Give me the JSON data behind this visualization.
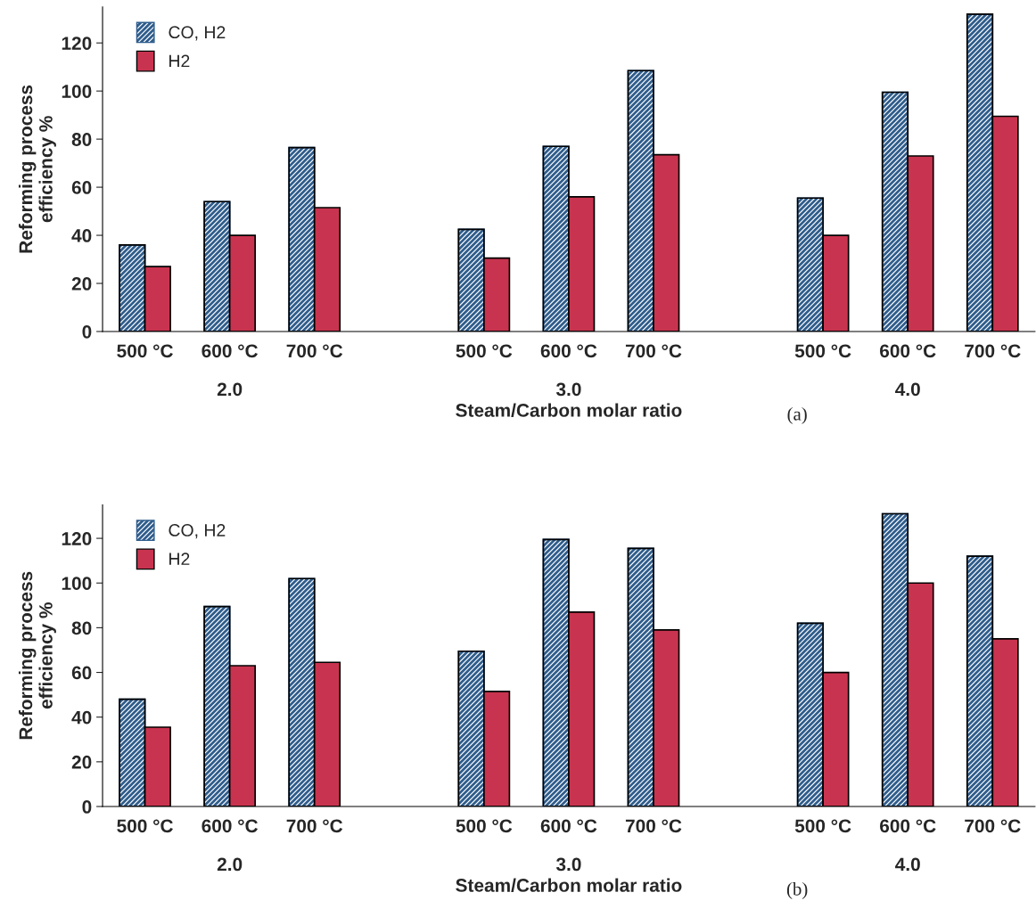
{
  "chart_data": [
    {
      "type": "bar",
      "ylabel": "Reforming process\nefficiency %",
      "xlabel": "Steam/Carbon molar ratio",
      "categories": [
        "500 °C",
        "600 °C",
        "700 °C",
        null,
        "500 °C",
        "600 °C",
        "700 °C",
        null,
        "500 °C",
        "600 °C",
        "700 °C"
      ],
      "series": [
        {
          "name": "CO, H2",
          "color": "#2f5d8c",
          "values": [
            36,
            54,
            76.5,
            null,
            42.5,
            77,
            108.5,
            null,
            55.5,
            99.5,
            132
          ]
        },
        {
          "name": "H2",
          "color": "#c8344f",
          "values": [
            27,
            40,
            51.5,
            null,
            30.5,
            56,
            73.5,
            null,
            40,
            73,
            89.5
          ]
        }
      ],
      "ylim": [
        0,
        135
      ],
      "yticks": [
        0,
        20,
        40,
        60,
        80,
        100,
        120
      ],
      "grid": false,
      "legend": "top left",
      "annotations": [
        "2.0",
        "3.0",
        "4.0",
        "(a)"
      ]
    },
    {
      "type": "bar",
      "ylabel": "Reforming process\nefficiency %",
      "xlabel": "Steam/Carbon molar ratio",
      "categories": [
        "500 °C",
        "600 °C",
        "700 °C",
        null,
        "500 °C",
        "600 °C",
        "700 °C",
        null,
        "500 °C",
        "600 °C",
        "700 °C"
      ],
      "series": [
        {
          "name": "CO, H2",
          "color": "#2f5d8c",
          "values": [
            48,
            89.5,
            102,
            null,
            69.5,
            119.5,
            115.5,
            null,
            82,
            131,
            112
          ]
        },
        {
          "name": "H2",
          "color": "#c8344f",
          "values": [
            35.5,
            63,
            64.5,
            null,
            51.5,
            87,
            79,
            null,
            60,
            100,
            75
          ]
        }
      ],
      "ylim": [
        0,
        135
      ],
      "yticks": [
        0,
        20,
        40,
        60,
        80,
        100,
        120
      ],
      "grid": false,
      "legend": "top left",
      "annotations": [
        "2.0",
        "3.0",
        "4.0",
        "(b)"
      ]
    }
  ]
}
